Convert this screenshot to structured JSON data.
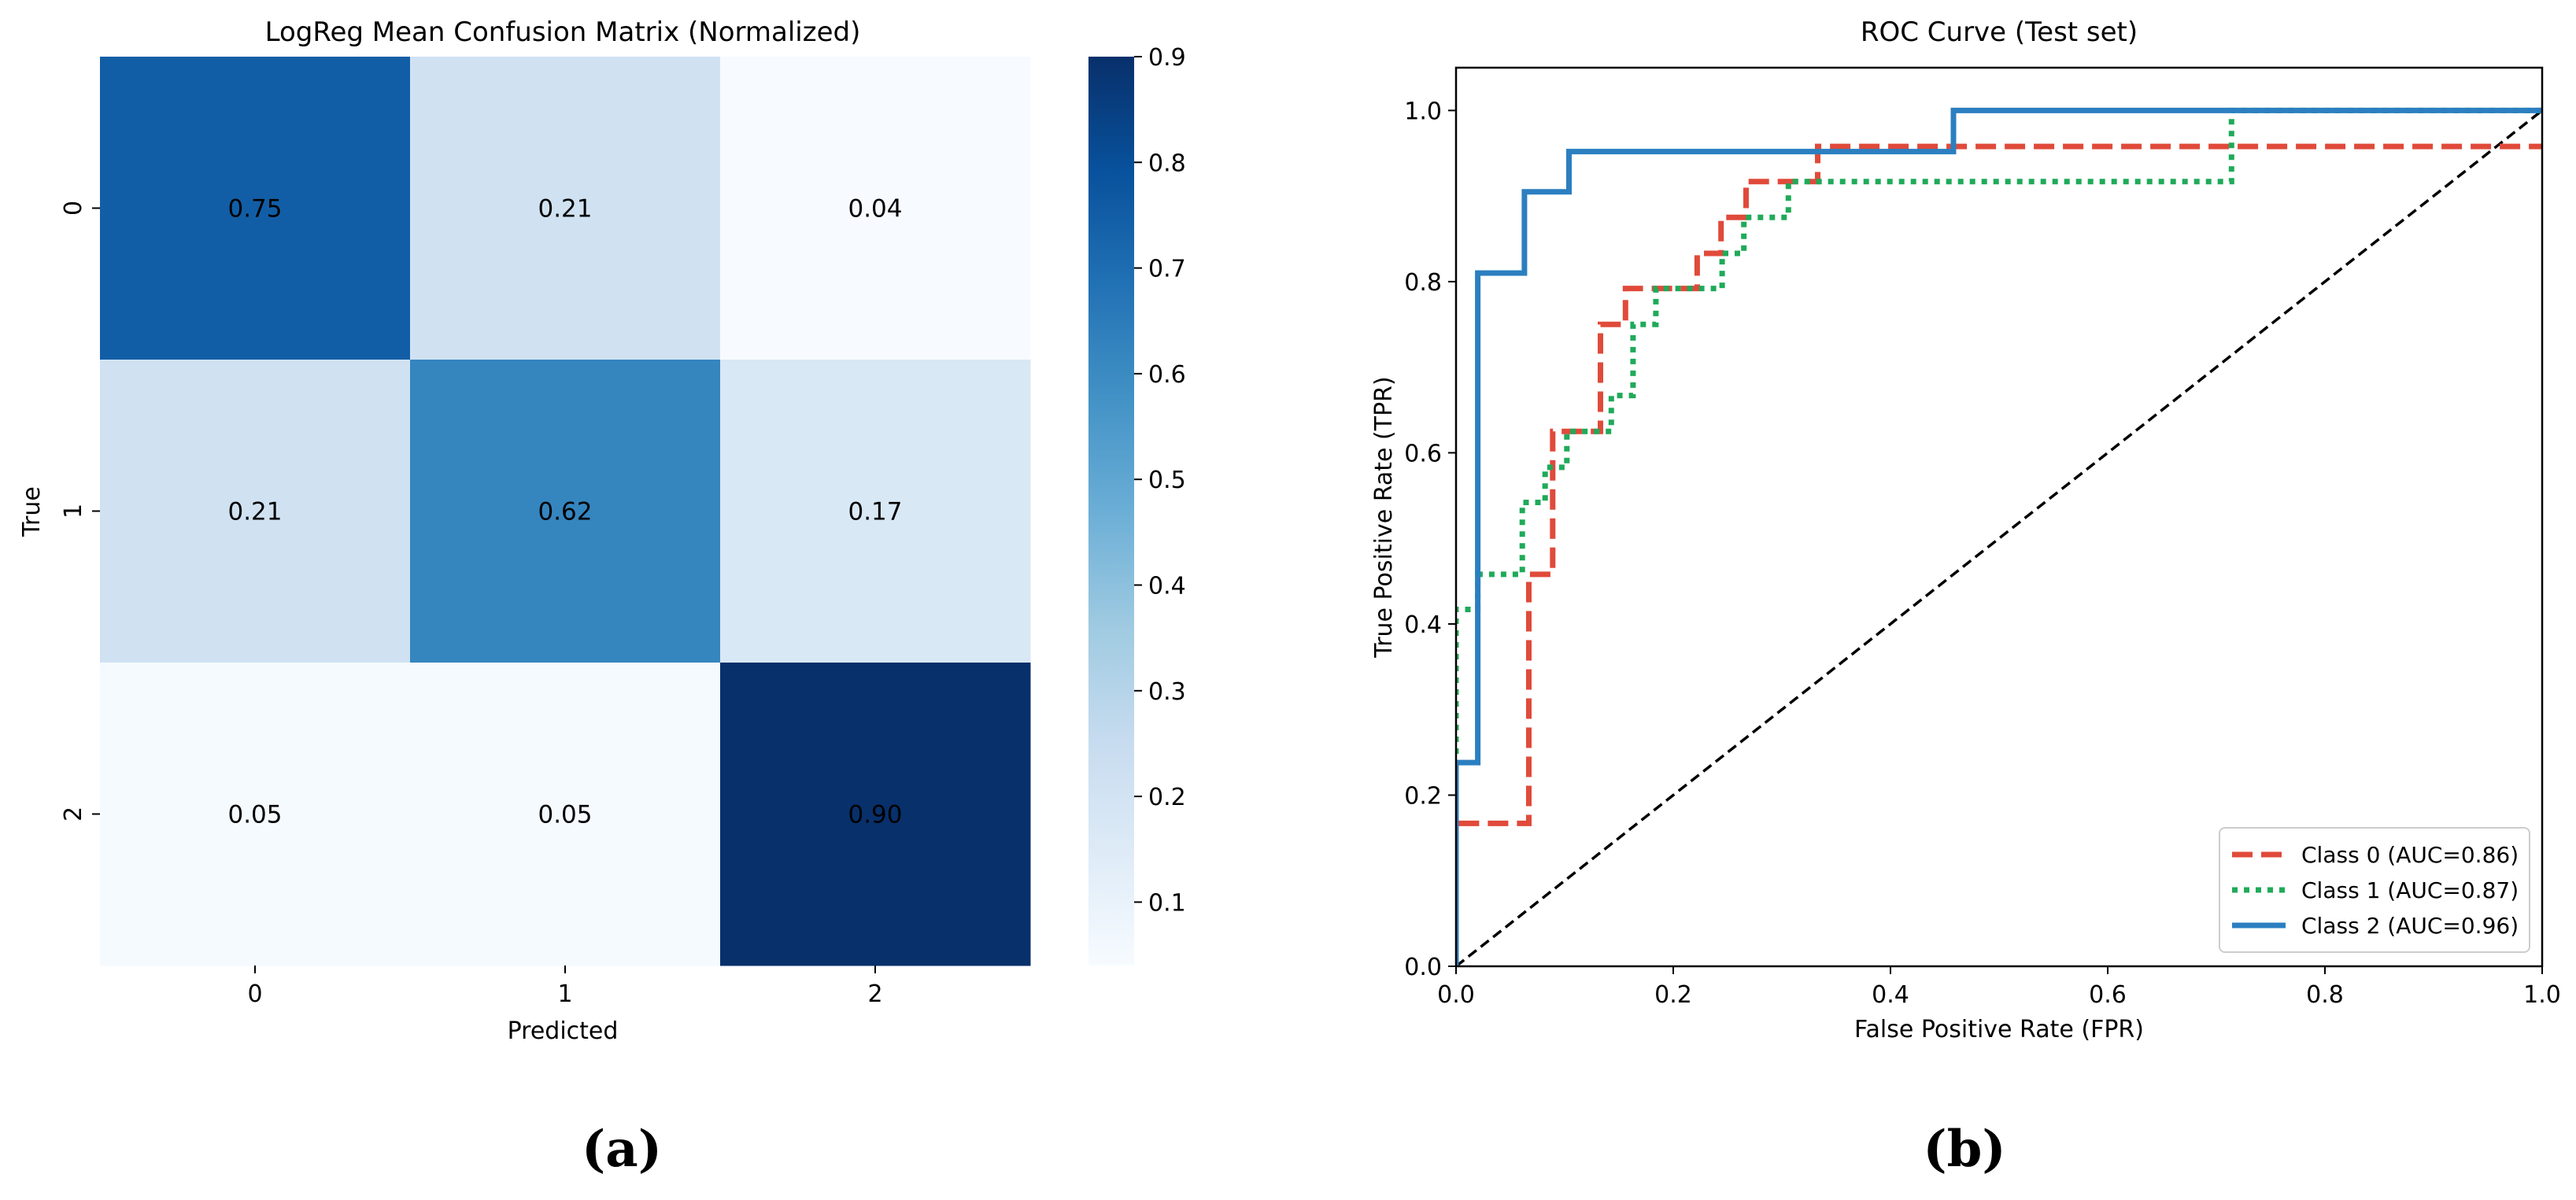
{
  "panel_labels": {
    "a": "(a)",
    "b": "(b)"
  },
  "colors": {
    "class0": "#e04a3a",
    "class1": "#1faa59",
    "class2": "#2b7fc0",
    "chance": "#000000"
  },
  "chart_data": [
    {
      "type": "heatmap",
      "title": "LogReg Mean Confusion Matrix (Normalized)",
      "xlabel": "Predicted",
      "ylabel": "True",
      "x_categories": [
        "0",
        "1",
        "2"
      ],
      "y_categories": [
        "0",
        "1",
        "2"
      ],
      "values": [
        [
          0.75,
          0.21,
          0.04
        ],
        [
          0.21,
          0.62,
          0.17
        ],
        [
          0.05,
          0.05,
          0.9
        ]
      ],
      "cell_labels": [
        [
          "0.75",
          "0.21",
          "0.04"
        ],
        [
          "0.21",
          "0.62",
          "0.17"
        ],
        [
          "0.05",
          "0.05",
          "0.90"
        ]
      ],
      "colormap": "Blues",
      "colorbar": {
        "min": 0.04,
        "max": 0.9,
        "ticks": [
          0.1,
          0.2,
          0.3,
          0.4,
          0.5,
          0.6,
          0.7,
          0.8,
          0.9
        ],
        "tick_labels": [
          "0.1",
          "0.2",
          "0.3",
          "0.4",
          "0.5",
          "0.6",
          "0.7",
          "0.8",
          "0.9"
        ]
      }
    },
    {
      "type": "line",
      "title": "ROC Curve (Test set)",
      "xlabel": "False Positive Rate (FPR)",
      "ylabel": "True Positive Rate (TPR)",
      "xlim": [
        0,
        1
      ],
      "ylim": [
        0,
        1.05
      ],
      "xticks": [
        0.0,
        0.2,
        0.4,
        0.6,
        0.8,
        1.0
      ],
      "xtick_labels": [
        "0.0",
        "0.2",
        "0.4",
        "0.6",
        "0.8",
        "1.0"
      ],
      "yticks": [
        0.0,
        0.2,
        0.4,
        0.6,
        0.8,
        1.0
      ],
      "ytick_labels": [
        "0.0",
        "0.2",
        "0.4",
        "0.6",
        "0.8",
        "1.0"
      ],
      "legend_position": "lower-right",
      "series": [
        {
          "name": "Class 0 (AUC=0.86)",
          "style": "dashed",
          "color_key": "class0",
          "x": [
            0,
            0,
            0.067,
            0.067,
            0.089,
            0.089,
            0.133,
            0.133,
            0.156,
            0.156,
            0.222,
            0.222,
            0.244,
            0.244,
            0.267,
            0.267,
            0.333,
            0.333,
            1.0
          ],
          "y": [
            0,
            0.167,
            0.167,
            0.458,
            0.458,
            0.625,
            0.625,
            0.75,
            0.75,
            0.792,
            0.792,
            0.833,
            0.833,
            0.875,
            0.875,
            0.917,
            0.917,
            0.958,
            0.958
          ]
        },
        {
          "name": "Class 1 (AUC=0.87)",
          "style": "dotted",
          "color_key": "class1",
          "x": [
            0,
            0,
            0.0,
            0.0,
            0.02,
            0.02,
            0.061,
            0.061,
            0.082,
            0.082,
            0.102,
            0.102,
            0.143,
            0.143,
            0.163,
            0.163,
            0.184,
            0.184,
            0.245,
            0.245,
            0.265,
            0.265,
            0.306,
            0.306,
            0.714,
            0.714,
            1.0
          ],
          "y": [
            0,
            0.25,
            0.25,
            0.417,
            0.417,
            0.458,
            0.458,
            0.542,
            0.542,
            0.583,
            0.583,
            0.625,
            0.625,
            0.667,
            0.667,
            0.75,
            0.75,
            0.792,
            0.792,
            0.833,
            0.833,
            0.875,
            0.875,
            0.917,
            0.917,
            1.0,
            1.0
          ]
        },
        {
          "name": "Class 2 (AUC=0.96)",
          "style": "solid",
          "color_key": "class2",
          "x": [
            0,
            0,
            0.02,
            0.02,
            0.063,
            0.063,
            0.104,
            0.104,
            0.458,
            0.458,
            1.0
          ],
          "y": [
            0,
            0.238,
            0.238,
            0.81,
            0.81,
            0.905,
            0.905,
            0.952,
            0.952,
            1.0,
            1.0
          ]
        },
        {
          "name": "",
          "style": "dashed-thin",
          "color_key": "chance",
          "x": [
            0,
            1
          ],
          "y": [
            0,
            1
          ]
        }
      ]
    }
  ]
}
